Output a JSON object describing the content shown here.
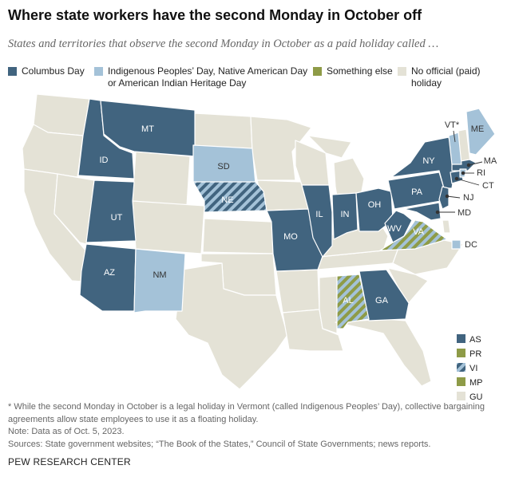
{
  "title": "Where state workers have the second Monday in October off",
  "subtitle": "States and territories that observe the second Monday in October as a paid holiday called …",
  "colors": {
    "columbus": "#41647f",
    "indigenous": "#a4c2d8",
    "something_else": "#8e9b47",
    "none": "#e4e2d6",
    "border": "#ffffff",
    "label_dark": "#ffffff",
    "label_light": "#333333"
  },
  "legend": [
    {
      "key": "columbus",
      "label": "Columbus Day"
    },
    {
      "key": "indigenous",
      "label": "Indigenous Peoples’ Day, Native American Day",
      "label2": "or American Indian Heritage Day"
    },
    {
      "key": "something_else",
      "label": "Something else"
    },
    {
      "key": "none",
      "label": "No official (paid) holiday"
    }
  ],
  "state_labels": [
    "ID",
    "MT",
    "SD",
    "NE",
    "UT",
    "AZ",
    "NM",
    "MO",
    "IL",
    "IN",
    "OH",
    "WV",
    "VA",
    "PA",
    "NY",
    "VT*",
    "ME",
    "MA",
    "RI",
    "CT",
    "NJ",
    "MD",
    "DC",
    "AL",
    "GA"
  ],
  "territories": [
    {
      "code": "AS",
      "category": "columbus"
    },
    {
      "code": "PR",
      "category": "something_else"
    },
    {
      "code": "VI",
      "category": "mixed"
    },
    {
      "code": "MP",
      "category": "something_else"
    },
    {
      "code": "GU",
      "category": "none"
    }
  ],
  "notes": {
    "asterisk": "* While the second Monday in October is a legal holiday in Vermont (called Indigenous Peoples’ Day), collective bargaining",
    "asterisk2": "agreements allow state employees to use it as a floating holiday.",
    "note": "Note: Data as of Oct. 5, 2023.",
    "sources": "Sources: State government websites; “The Book of the States,” Council of State Governments; news reports."
  },
  "logo": "PEW RESEARCH CENTER"
}
